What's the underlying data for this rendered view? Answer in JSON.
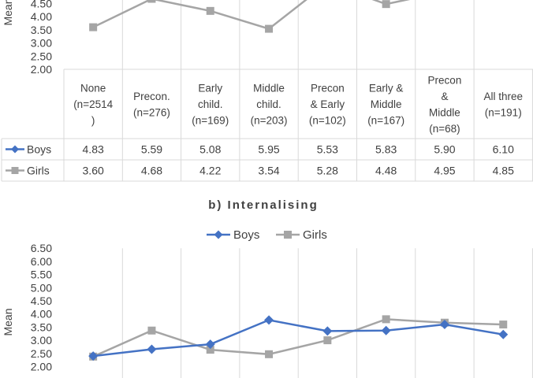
{
  "chart_data": [
    {
      "type": "table",
      "ylabel": "Mean",
      "ylim": [
        2.0,
        6.5
      ],
      "yticks": [
        "2.00",
        "2.50",
        "3.00",
        "3.50",
        "4.00",
        "4.50"
      ],
      "categories": [
        [
          "None",
          "(n=2514",
          ")"
        ],
        [
          "Precon.",
          "(n=276)"
        ],
        [
          "Early",
          "child.",
          "(n=169)"
        ],
        [
          "Middle",
          "child.",
          "(n=203)"
        ],
        [
          "Precon",
          "& Early",
          "(n=102)"
        ],
        [
          "Early &",
          "Middle",
          "(n=167)"
        ],
        [
          "Precon",
          "&",
          "Middle",
          "(n=68)"
        ],
        [
          "All three",
          "(n=191)"
        ]
      ],
      "series": [
        {
          "name": "Boys",
          "color": "#4472C4",
          "marker": "diamond",
          "values": [
            4.83,
            5.59,
            5.08,
            5.95,
            5.53,
            5.83,
            5.9,
            6.1
          ],
          "labels": [
            "4.83",
            "5.59",
            "5.08",
            "5.95",
            "5.53",
            "5.83",
            "5.90",
            "6.10"
          ]
        },
        {
          "name": "Girls",
          "color": "#A5A5A5",
          "marker": "square",
          "values": [
            3.6,
            4.68,
            4.22,
            3.54,
            5.28,
            4.48,
            4.95,
            4.85
          ],
          "labels": [
            "3.60",
            "4.68",
            "4.22",
            "3.54",
            "5.28",
            "4.48",
            "4.95",
            "4.85"
          ]
        }
      ]
    },
    {
      "type": "line",
      "title": "b) Internalising",
      "ylabel": "Mean",
      "ylim": [
        2.0,
        6.5
      ],
      "yticks": [
        "2.00",
        "2.50",
        "3.00",
        "3.50",
        "4.00",
        "4.50",
        "5.00",
        "5.50",
        "6.00",
        "6.50"
      ],
      "legend_position": "top",
      "series": [
        {
          "name": "Boys",
          "color": "#4472C4",
          "marker": "diamond",
          "values": [
            2.4,
            2.66,
            2.85,
            3.77,
            3.35,
            3.37,
            3.6,
            3.22
          ]
        },
        {
          "name": "Girls",
          "color": "#A5A5A5",
          "marker": "square",
          "values": [
            2.38,
            3.37,
            2.64,
            2.47,
            3.0,
            3.8,
            3.67,
            3.6
          ]
        }
      ]
    }
  ]
}
